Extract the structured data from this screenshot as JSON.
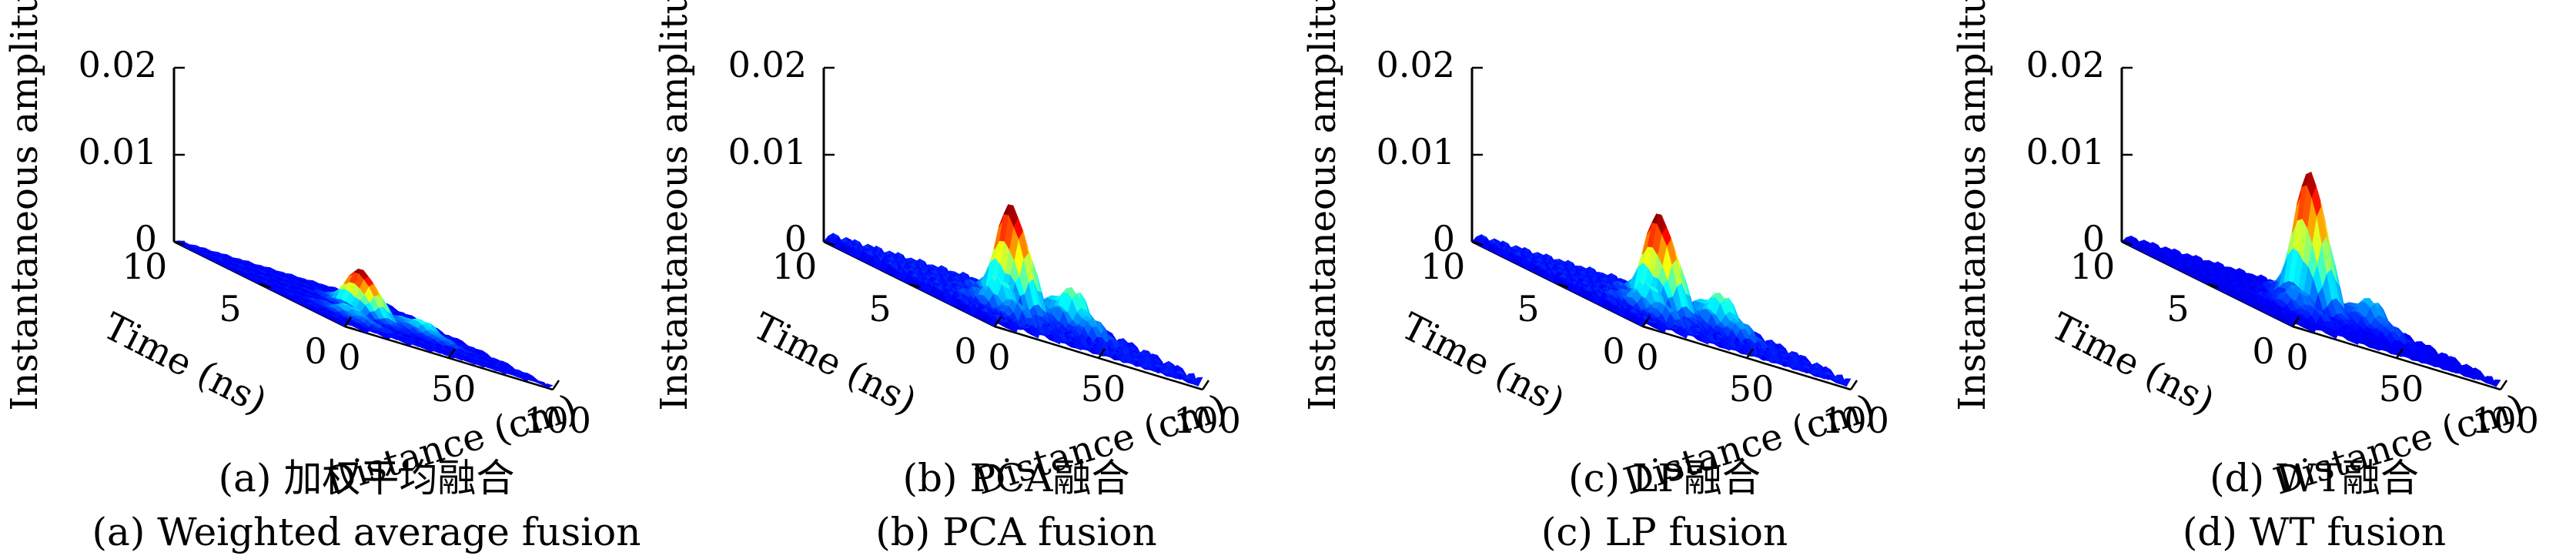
{
  "chart_data": [
    {
      "type": "surface",
      "caption_cn": "(a) 加权平均融合",
      "caption_en": "(a) Weighted average fusion",
      "xlabel": "Distance (cm)",
      "ylabel": "Time (ns)",
      "zlabel": "Instantaneous amplitude",
      "xticks": [
        "0",
        "50",
        "100"
      ],
      "yticks": [
        "0",
        "5",
        "10"
      ],
      "zticks": [
        "0",
        "0.01",
        "0.02"
      ],
      "xlim": [
        0,
        100
      ],
      "ylim": [
        0,
        10
      ],
      "zlim": [
        0,
        0.02
      ],
      "colormap": "jet",
      "peak": {
        "distance": 50,
        "time": 5,
        "amplitude": 0.005
      },
      "side_lobes_amplitude": 0.0015
    },
    {
      "type": "surface",
      "caption_cn": "(b) PCA融合",
      "caption_en": "(b) PCA fusion",
      "xlabel": "Distance (cm)",
      "ylabel": "Time (ns)",
      "zlabel": "Instantaneous amplitude",
      "xticks": [
        "0",
        "50",
        "100"
      ],
      "yticks": [
        "0",
        "5",
        "10"
      ],
      "zticks": [
        "0",
        "0.01",
        "0.02"
      ],
      "xlim": [
        0,
        100
      ],
      "ylim": [
        0,
        10
      ],
      "zlim": [
        0,
        0.02
      ],
      "colormap": "jet",
      "peak": {
        "distance": 50,
        "time": 5,
        "amplitude": 0.012
      },
      "side_lobes_amplitude": 0.0045
    },
    {
      "type": "surface",
      "caption_cn": "(c) LP融合",
      "caption_en": "(c) LP fusion",
      "xlabel": "Distance (cm)",
      "ylabel": "Time (ns)",
      "zlabel": "Instantaneous amplitude",
      "xticks": [
        "0",
        "50",
        "100"
      ],
      "yticks": [
        "0",
        "5",
        "10"
      ],
      "zticks": [
        "0",
        "0.01",
        "0.02"
      ],
      "xlim": [
        0,
        100
      ],
      "ylim": [
        0,
        10
      ],
      "zlim": [
        0,
        0.02
      ],
      "colormap": "jet",
      "peak": {
        "distance": 50,
        "time": 5,
        "amplitude": 0.011
      },
      "side_lobes_amplitude": 0.004
    },
    {
      "type": "surface",
      "caption_cn": "(d) WT融合",
      "caption_en": "(d) WT fusion",
      "xlabel": "Distance (cm)",
      "ylabel": "Time (ns)",
      "zlabel": "Instantaneous amplitude",
      "xticks": [
        "0",
        "50",
        "100"
      ],
      "yticks": [
        "0",
        "5",
        "10"
      ],
      "zticks": [
        "0",
        "0.01",
        "0.02"
      ],
      "xlim": [
        0,
        100
      ],
      "ylim": [
        0,
        10
      ],
      "zlim": [
        0,
        0.02
      ],
      "colormap": "jet",
      "peak": {
        "distance": 50,
        "time": 5,
        "amplitude": 0.016
      },
      "side_lobes_amplitude": 0.0035
    }
  ]
}
